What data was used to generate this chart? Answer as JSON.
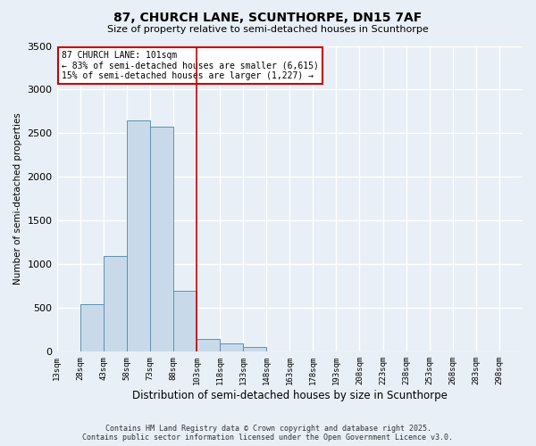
{
  "title1": "87, CHURCH LANE, SCUNTHORPE, DN15 7AF",
  "title2": "Size of property relative to semi-detached houses in Scunthorpe",
  "xlabel": "Distribution of semi-detached houses by size in Scunthorpe",
  "ylabel": "Number of semi-detached properties",
  "annotation_line1": "87 CHURCH LANE: 101sqm",
  "annotation_line2": "← 83% of semi-detached houses are smaller (6,615)",
  "annotation_line3": "15% of semi-detached houses are larger (1,227) →",
  "footer1": "Contains HM Land Registry data © Crown copyright and database right 2025.",
  "footer2": "Contains public sector information licensed under the Open Government Licence v3.0.",
  "bin_edges": [
    13,
    28,
    43,
    58,
    73,
    88,
    103,
    118,
    133,
    148,
    163,
    178,
    193,
    208,
    223,
    238,
    253,
    268,
    283,
    298,
    313
  ],
  "bar_values": [
    0,
    540,
    1100,
    2650,
    2580,
    700,
    150,
    100,
    50,
    0,
    0,
    0,
    0,
    0,
    0,
    0,
    0,
    0,
    0,
    0
  ],
  "property_line_x": 103,
  "bar_color": "#c8daea",
  "bar_edge_color": "#6090b0",
  "annotation_box_color": "#ffffff",
  "annotation_box_edge": "#cc0000",
  "property_line_color": "#cc0000",
  "background_color": "#e8eff6",
  "grid_color": "#ffffff",
  "ylim": [
    0,
    3500
  ],
  "yticks": [
    0,
    500,
    1000,
    1500,
    2000,
    2500,
    3000,
    3500
  ]
}
